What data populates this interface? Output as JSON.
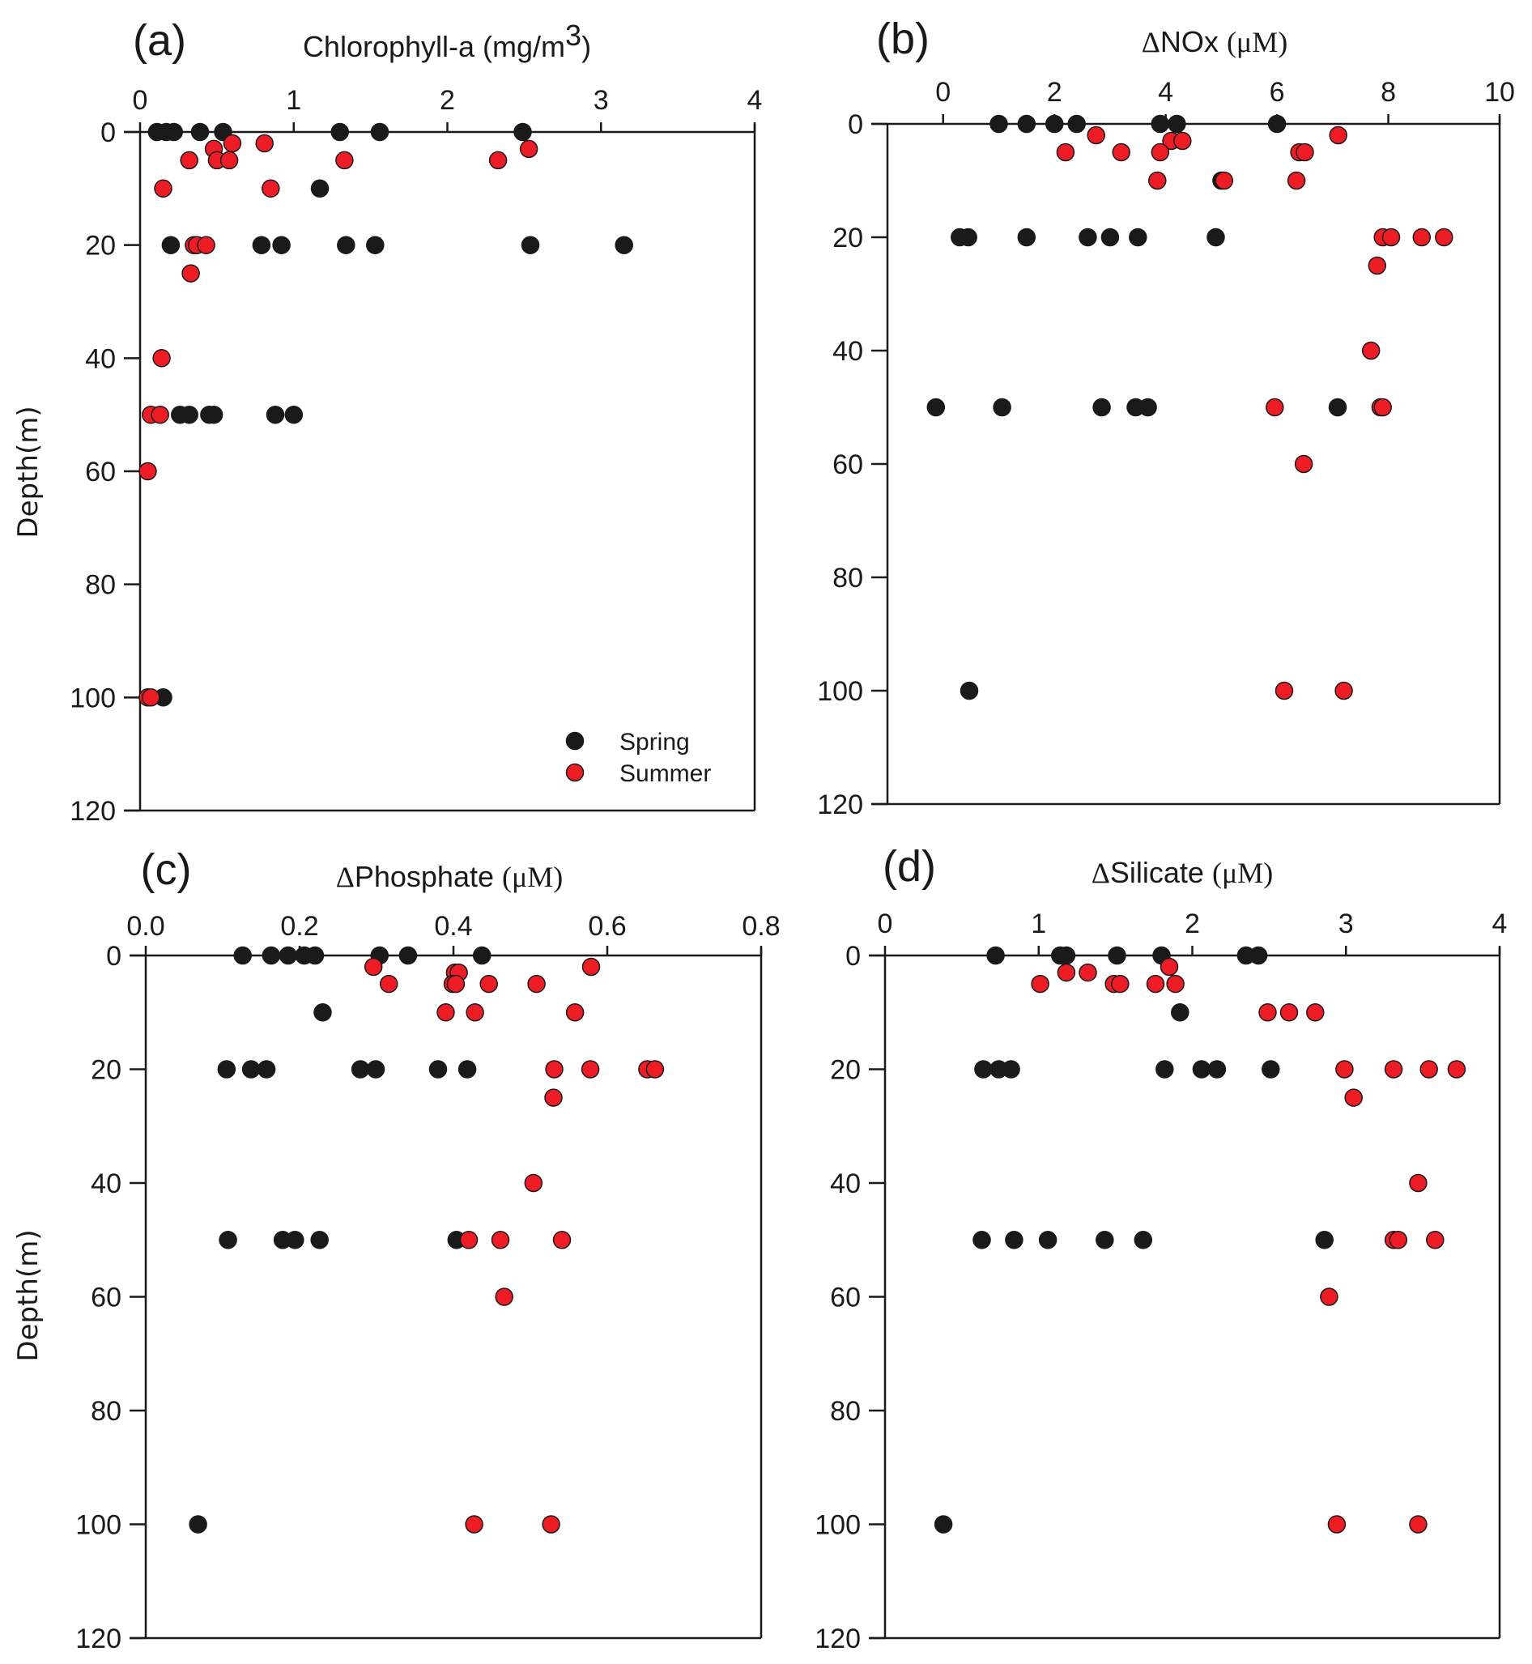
{
  "colors": {
    "spring": "#1a1a1a",
    "summer": "#ee1c25",
    "stroke": "#1a1a1a"
  },
  "legend": {
    "placement": "bottom-right of panel (a)",
    "items": [
      {
        "label": "Spring",
        "series": "spring"
      },
      {
        "label": "Summer",
        "series": "summer"
      }
    ]
  },
  "chart_data": [
    {
      "type": "scatter",
      "panel_label": "(a)",
      "title": "Chlorophyll-a (mg/m",
      "title_sup": "3",
      "title_tail": ")",
      "xlabel": "Chlorophyll-a (mg/m3)",
      "ylabel": "Depth(m)",
      "xlim": [
        0,
        4
      ],
      "ylim": [
        0,
        120
      ],
      "y_inverted": true,
      "xticks": [
        0,
        1,
        2,
        3,
        4
      ],
      "xtick_labels": [
        "0",
        "1",
        "2",
        "3",
        "4"
      ],
      "yticks": [
        0,
        20,
        40,
        60,
        80,
        100,
        120
      ],
      "ytick_labels": [
        "0",
        "20",
        "40",
        "60",
        "80",
        "100",
        "120"
      ],
      "series": [
        {
          "name": "Spring",
          "points": [
            [
              0.11,
              0
            ],
            [
              0.17,
              0
            ],
            [
              0.22,
              0
            ],
            [
              0.39,
              0
            ],
            [
              0.54,
              0
            ],
            [
              1.3,
              0
            ],
            [
              1.56,
              0
            ],
            [
              2.49,
              0
            ],
            [
              1.17,
              10
            ],
            [
              0.2,
              20
            ],
            [
              0.79,
              20
            ],
            [
              0.92,
              20
            ],
            [
              1.34,
              20
            ],
            [
              1.53,
              20
            ],
            [
              2.54,
              20
            ],
            [
              3.15,
              20
            ],
            [
              0.26,
              50
            ],
            [
              0.32,
              50
            ],
            [
              0.45,
              50
            ],
            [
              0.48,
              50
            ],
            [
              0.88,
              50
            ],
            [
              1.0,
              50
            ],
            [
              0.15,
              100
            ]
          ]
        },
        {
          "name": "Summer",
          "points": [
            [
              0.6,
              2
            ],
            [
              0.81,
              2
            ],
            [
              0.48,
              3
            ],
            [
              2.53,
              3
            ],
            [
              0.32,
              5
            ],
            [
              0.5,
              5
            ],
            [
              0.58,
              5
            ],
            [
              1.33,
              5
            ],
            [
              2.33,
              5
            ],
            [
              0.15,
              10
            ],
            [
              0.85,
              10
            ],
            [
              0.35,
              20
            ],
            [
              0.37,
              20
            ],
            [
              0.43,
              20
            ],
            [
              0.33,
              25
            ],
            [
              0.14,
              40
            ],
            [
              0.07,
              50
            ],
            [
              0.13,
              50
            ],
            [
              0.05,
              60
            ],
            [
              0.05,
              100
            ],
            [
              0.07,
              100
            ]
          ]
        }
      ]
    },
    {
      "type": "scatter",
      "panel_label": "(b)",
      "title_delta": "Δ",
      "title": "NOx ",
      "title_unit": "(μM)",
      "xlabel": "ΔNOx (μM)",
      "ylabel": "",
      "xlim": [
        -1,
        10
      ],
      "ylim": [
        0,
        120
      ],
      "y_inverted": true,
      "xticks": [
        0,
        2,
        4,
        6,
        8,
        10
      ],
      "xtick_labels": [
        "0",
        "2",
        "4",
        "6",
        "8",
        "10"
      ],
      "yticks": [
        0,
        20,
        40,
        60,
        80,
        100,
        120
      ],
      "ytick_labels": [
        "0",
        "20",
        "40",
        "60",
        "80",
        "100",
        "120"
      ],
      "series": [
        {
          "name": "Spring",
          "points": [
            [
              1.0,
              0
            ],
            [
              1.5,
              0
            ],
            [
              2.0,
              0
            ],
            [
              2.4,
              0
            ],
            [
              3.9,
              0
            ],
            [
              4.2,
              0
            ],
            [
              6.0,
              0
            ],
            [
              5.0,
              10
            ],
            [
              0.3,
              20
            ],
            [
              0.45,
              20
            ],
            [
              1.5,
              20
            ],
            [
              2.6,
              20
            ],
            [
              3.0,
              20
            ],
            [
              3.5,
              20
            ],
            [
              4.9,
              20
            ],
            [
              -0.13,
              50
            ],
            [
              1.06,
              50
            ],
            [
              2.85,
              50
            ],
            [
              3.46,
              50
            ],
            [
              3.68,
              50
            ],
            [
              7.09,
              50
            ],
            [
              0.47,
              100
            ]
          ]
        },
        {
          "name": "Summer",
          "points": [
            [
              2.75,
              2
            ],
            [
              7.1,
              2
            ],
            [
              4.1,
              3
            ],
            [
              4.3,
              3
            ],
            [
              2.2,
              5
            ],
            [
              3.2,
              5
            ],
            [
              3.9,
              5
            ],
            [
              6.4,
              5
            ],
            [
              6.5,
              5
            ],
            [
              3.85,
              10
            ],
            [
              5.05,
              10
            ],
            [
              6.35,
              10
            ],
            [
              7.9,
              20
            ],
            [
              8.05,
              20
            ],
            [
              8.6,
              20
            ],
            [
              9.0,
              20
            ],
            [
              7.8,
              25
            ],
            [
              7.69,
              40
            ],
            [
              5.96,
              50
            ],
            [
              7.86,
              50
            ],
            [
              7.9,
              50
            ],
            [
              6.48,
              60
            ],
            [
              6.13,
              100
            ],
            [
              7.2,
              100
            ]
          ]
        }
      ]
    },
    {
      "type": "scatter",
      "panel_label": "(c)",
      "title_delta": "Δ",
      "title": "Phosphate ",
      "title_unit": "(μM)",
      "xlabel": "ΔPhosphate (μM)",
      "ylabel": "Depth(m)",
      "xlim": [
        0,
        0.8
      ],
      "ylim": [
        0,
        120
      ],
      "y_inverted": true,
      "xticks": [
        0,
        0.2,
        0.4,
        0.6,
        0.8
      ],
      "xtick_labels": [
        "0.0",
        "0.2",
        "0.4",
        "0.6",
        "0.8"
      ],
      "yticks": [
        0,
        20,
        40,
        60,
        80,
        100,
        120
      ],
      "ytick_labels": [
        "0",
        "20",
        "40",
        "60",
        "80",
        "100",
        "120"
      ],
      "series": [
        {
          "name": "Spring",
          "points": [
            [
              0.126,
              0
            ],
            [
              0.163,
              0
            ],
            [
              0.185,
              0
            ],
            [
              0.206,
              0
            ],
            [
              0.22,
              0
            ],
            [
              0.304,
              0
            ],
            [
              0.341,
              0
            ],
            [
              0.437,
              0
            ],
            [
              0.23,
              10
            ],
            [
              0.105,
              20
            ],
            [
              0.137,
              20
            ],
            [
              0.157,
              20
            ],
            [
              0.279,
              20
            ],
            [
              0.299,
              20
            ],
            [
              0.38,
              20
            ],
            [
              0.418,
              20
            ],
            [
              0.107,
              50
            ],
            [
              0.178,
              50
            ],
            [
              0.194,
              50
            ],
            [
              0.226,
              50
            ],
            [
              0.404,
              50
            ],
            [
              0.068,
              100
            ]
          ]
        },
        {
          "name": "Summer",
          "points": [
            [
              0.296,
              2
            ],
            [
              0.579,
              2
            ],
            [
              0.402,
              3
            ],
            [
              0.407,
              3
            ],
            [
              0.316,
              5
            ],
            [
              0.399,
              5
            ],
            [
              0.403,
              5
            ],
            [
              0.446,
              5
            ],
            [
              0.508,
              5
            ],
            [
              0.39,
              10
            ],
            [
              0.428,
              10
            ],
            [
              0.558,
              10
            ],
            [
              0.531,
              20
            ],
            [
              0.578,
              20
            ],
            [
              0.652,
              20
            ],
            [
              0.662,
              20
            ],
            [
              0.53,
              25
            ],
            [
              0.504,
              40
            ],
            [
              0.42,
              50
            ],
            [
              0.461,
              50
            ],
            [
              0.541,
              50
            ],
            [
              0.466,
              60
            ],
            [
              0.427,
              100
            ],
            [
              0.527,
              100
            ]
          ]
        }
      ]
    },
    {
      "type": "scatter",
      "panel_label": "(d)",
      "title_delta": "Δ",
      "title": "Silicate ",
      "title_unit": "(μM)",
      "xlabel": "ΔSilicate (μM)",
      "ylabel": "",
      "xlim": [
        0,
        4
      ],
      "ylim": [
        0,
        120
      ],
      "y_inverted": true,
      "xticks": [
        0,
        1,
        2,
        3,
        4
      ],
      "xtick_labels": [
        "0",
        "1",
        "2",
        "3",
        "4"
      ],
      "yticks": [
        0,
        20,
        40,
        60,
        80,
        100,
        120
      ],
      "ytick_labels": [
        "0",
        "20",
        "40",
        "60",
        "80",
        "100",
        "120"
      ],
      "series": [
        {
          "name": "Spring",
          "points": [
            [
              0.72,
              0
            ],
            [
              1.14,
              0
            ],
            [
              1.18,
              0
            ],
            [
              1.51,
              0
            ],
            [
              1.8,
              0
            ],
            [
              2.35,
              0
            ],
            [
              2.43,
              0
            ],
            [
              1.92,
              10
            ],
            [
              0.64,
              20
            ],
            [
              0.74,
              20
            ],
            [
              0.82,
              20
            ],
            [
              1.82,
              20
            ],
            [
              2.06,
              20
            ],
            [
              2.16,
              20
            ],
            [
              2.51,
              20
            ],
            [
              0.63,
              50
            ],
            [
              0.84,
              50
            ],
            [
              1.06,
              50
            ],
            [
              1.43,
              50
            ],
            [
              1.68,
              50
            ],
            [
              2.86,
              50
            ],
            [
              0.38,
              100
            ]
          ]
        },
        {
          "name": "Summer",
          "points": [
            [
              1.85,
              2
            ],
            [
              1.18,
              3
            ],
            [
              1.32,
              3
            ],
            [
              1.01,
              5
            ],
            [
              1.49,
              5
            ],
            [
              1.53,
              5
            ],
            [
              1.76,
              5
            ],
            [
              1.89,
              5
            ],
            [
              2.49,
              10
            ],
            [
              2.63,
              10
            ],
            [
              2.8,
              10
            ],
            [
              2.99,
              20
            ],
            [
              3.31,
              20
            ],
            [
              3.54,
              20
            ],
            [
              3.72,
              20
            ],
            [
              3.05,
              25
            ],
            [
              3.47,
              40
            ],
            [
              3.31,
              50
            ],
            [
              3.34,
              50
            ],
            [
              3.58,
              50
            ],
            [
              2.89,
              60
            ],
            [
              2.94,
              100
            ],
            [
              3.47,
              100
            ]
          ]
        }
      ]
    }
  ]
}
